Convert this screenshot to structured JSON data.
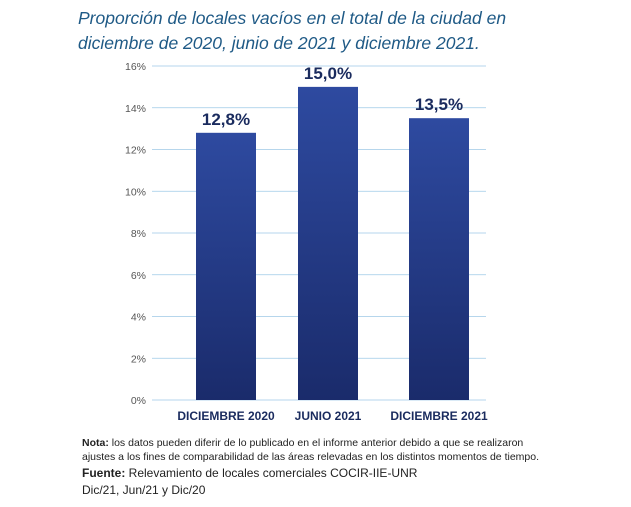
{
  "title_line1": "Proporción de locales vacíos en el total de la ciudad en",
  "title_line2": "diciembre de 2020, junio de 2021 y diciembre 2021.",
  "chart_data": {
    "type": "bar",
    "categories": [
      "DICIEMBRE 2020",
      "JUNIO 2021",
      "DICIEMBRE 2021"
    ],
    "values": [
      12.8,
      15.0,
      13.5
    ],
    "data_labels": [
      "12,8%",
      "15,0%",
      "13,5%"
    ],
    "yticks": [
      "0%",
      "2%",
      "4%",
      "6%",
      "8%",
      "10%",
      "12%",
      "14%",
      "16%"
    ],
    "ylim": [
      0,
      16
    ],
    "grid": true,
    "bar_color_top": "#2e4aa0",
    "bar_color_bottom": "#1a2b6b",
    "label_color": "#1a2b5e"
  },
  "notes": {
    "nota_label": "Nota:",
    "nota_text1": " los datos pueden diferir de lo publicado en el informe anterior debido a que se realizaron",
    "nota_text2": "ajustes a los fines de comparabilidad de las áreas relevadas en los distintos momentos de tiempo.",
    "fuente_label": "Fuente:",
    "fuente_text": " Relevamiento de locales comerciales COCIR-IIE-UNR",
    "fuente_dates": "Dic/21, Jun/21 y Dic/20"
  }
}
